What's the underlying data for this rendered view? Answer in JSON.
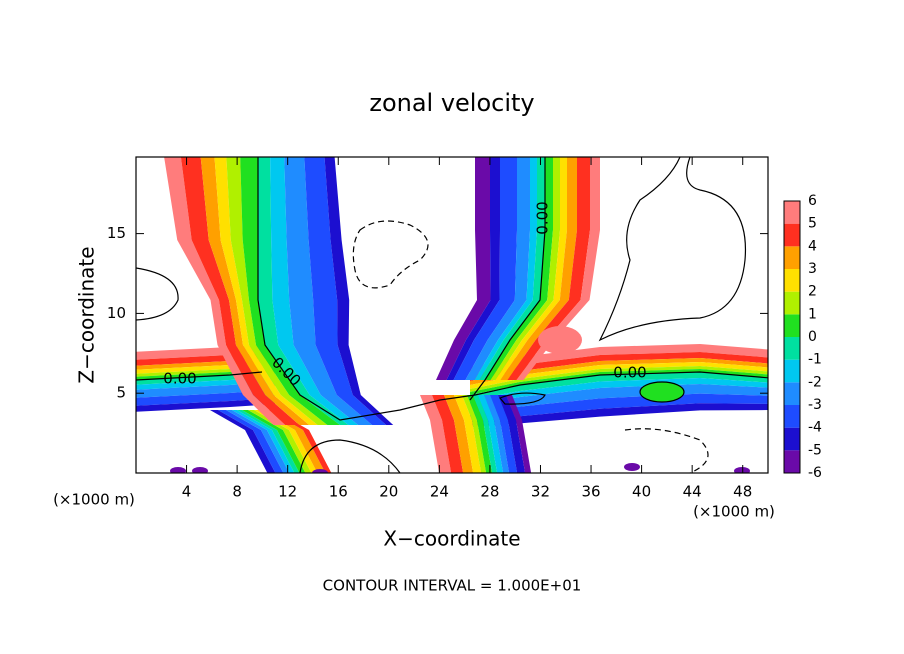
{
  "chart_data": {
    "type": "contour",
    "title": "zonal velocity",
    "xlabel": "X−coordinate",
    "ylabel": "Z−coordinate",
    "x_unit_label": "(×1000 m)",
    "y_unit_label": "(×1000 m)",
    "footer": "CONTOUR INTERVAL = 1.000E+01",
    "contour_labels": [
      "0.00"
    ],
    "xlim": [
      0,
      50
    ],
    "xticks": [
      4,
      8,
      12,
      16,
      20,
      24,
      28,
      32,
      36,
      40,
      44,
      48
    ],
    "ylim": [
      0,
      19.8
    ],
    "yticks": [
      5,
      10,
      15
    ],
    "levels": [
      -6,
      -5,
      -4,
      -3,
      -2,
      -1,
      0,
      1,
      2,
      3,
      4,
      5,
      6
    ],
    "colors": [
      "#6a0aa8",
      "#1c0fd0",
      "#1e4cff",
      "#1f8cff",
      "#00c8f0",
      "#00e0a0",
      "#20e020",
      "#b0f000",
      "#ffe000",
      "#ffa000",
      "#ff3020",
      "#ff7c7c"
    ]
  }
}
